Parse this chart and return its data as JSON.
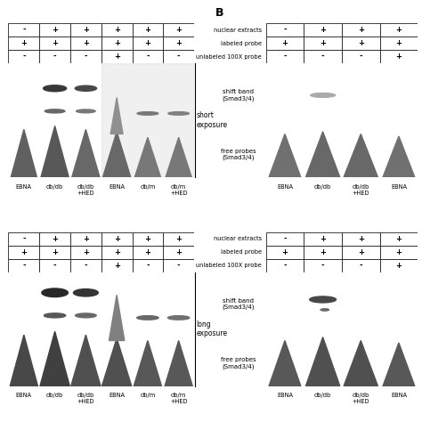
{
  "fig_width": 4.74,
  "fig_height": 4.74,
  "bg_color": "#ffffff",
  "gel_bg_light": "#c8c8c8",
  "gel_bg_dark": "#b8b8b8",
  "panel_border": "#4444aa",
  "left_cols": [
    "EBNA",
    "db/db",
    "db/db\n+HED",
    "EBNA",
    "db/m",
    "db/m\n+HED"
  ],
  "right_cols": [
    "EBNA",
    "db/db",
    "db/db\n+HED",
    "EBNA"
  ],
  "right_row_labels": [
    "nuclear extracts",
    "labeled probe",
    "unlabeled 100X probe"
  ],
  "left_table": [
    [
      "-",
      "+",
      "+",
      "+",
      "+",
      "+"
    ],
    [
      "+",
      "+",
      "+",
      "+",
      "+",
      "+"
    ],
    [
      "-",
      "-",
      "-",
      "+",
      "-",
      "-"
    ]
  ],
  "right_table": [
    [
      "-",
      "+",
      "+",
      "+"
    ],
    [
      "+",
      "+",
      "+",
      "+"
    ],
    [
      "-",
      "-",
      "-",
      "+"
    ]
  ],
  "short_exposure": "short\nexposure",
  "long_exposure": "long\nexposure",
  "shift_band": "shift band\n(Smad3/4)",
  "free_probes": "free probes\n(Smad3/4)",
  "B_label": "B"
}
